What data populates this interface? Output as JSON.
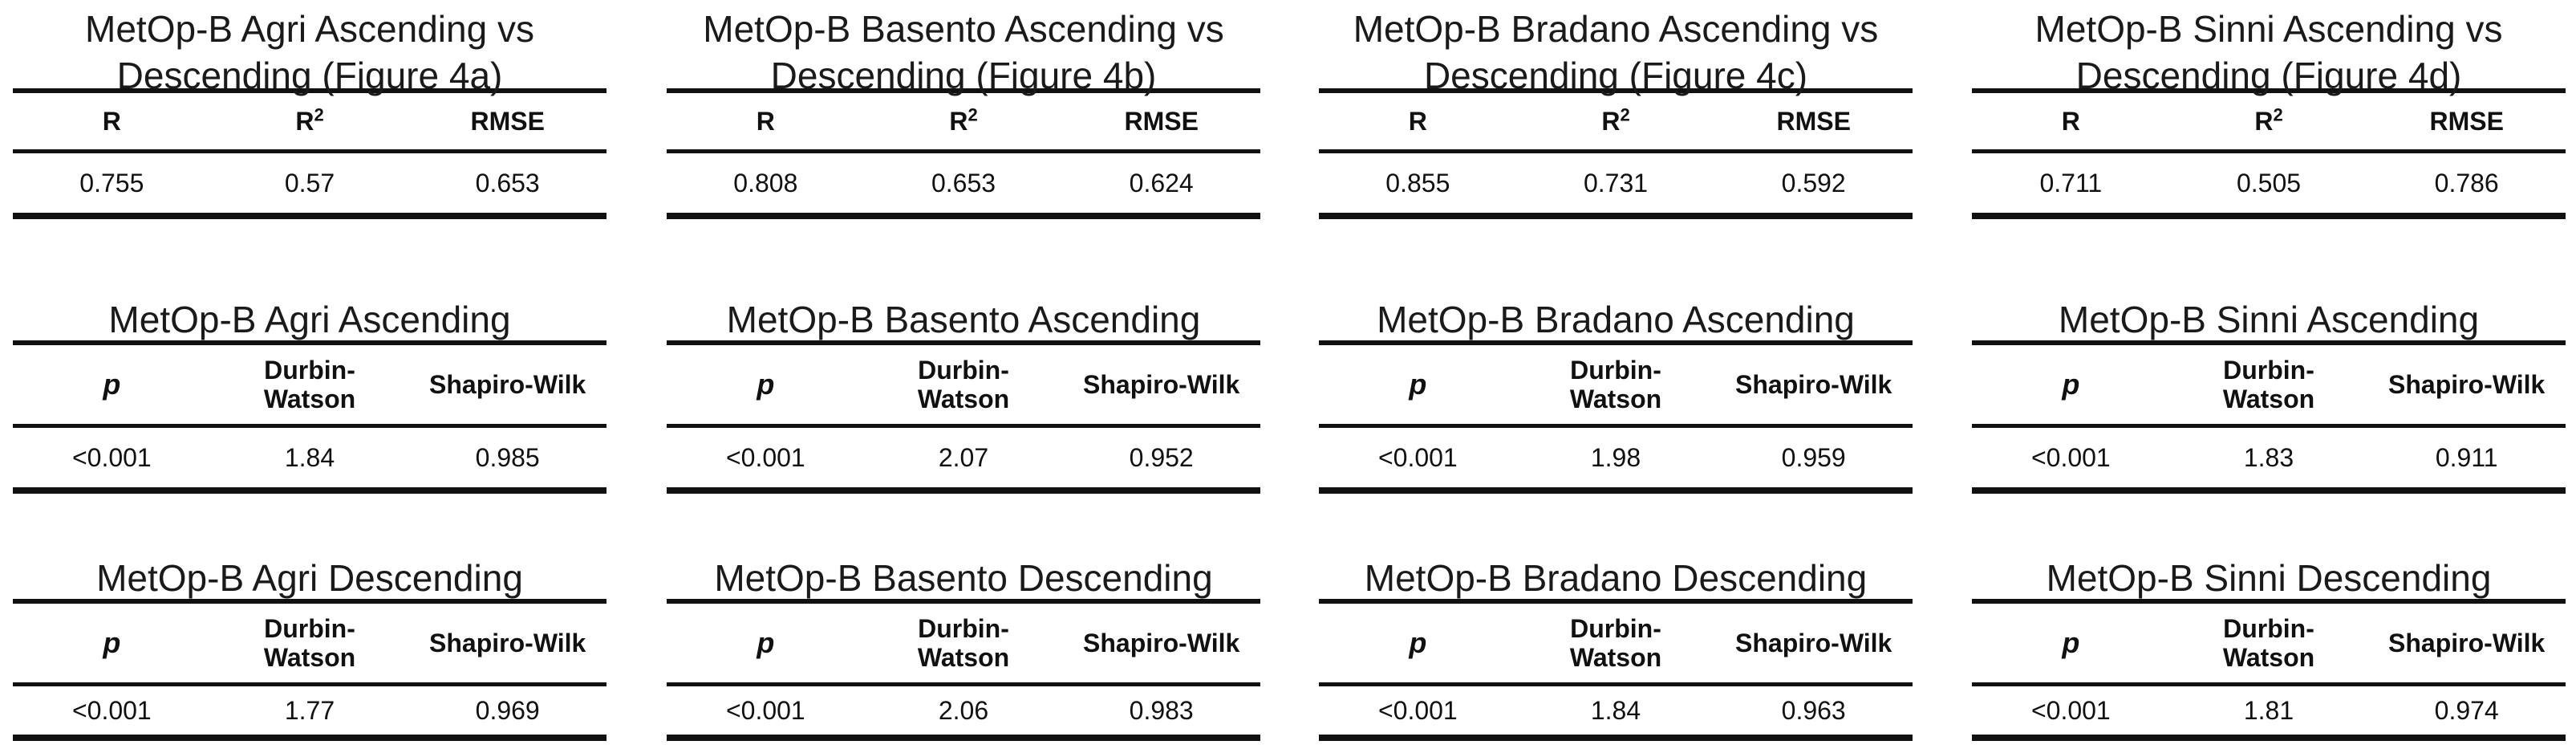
{
  "columns": [
    {
      "comparison": {
        "title_line1": "MetOp-B Agri Ascending vs",
        "title_line2": "Descending (Figure 4a)",
        "headers": {
          "r": "R",
          "r2_base": "R",
          "r2_sup": "2",
          "rmse": "RMSE"
        },
        "values": {
          "r": "0.755",
          "r2": "0.57",
          "rmse": "0.653"
        }
      },
      "ascending": {
        "title": "MetOp-B Agri Ascending",
        "headers": {
          "p": "p",
          "dw_line1": "Durbin-",
          "dw_line2": "Watson",
          "sw": "Shapiro-Wilk"
        },
        "values": {
          "p": "<0.001",
          "dw": "1.84",
          "sw": "0.985"
        }
      },
      "descending": {
        "title": "MetOp-B Agri Descending",
        "headers": {
          "p": "p",
          "dw_line1": "Durbin-",
          "dw_line2": "Watson",
          "sw": "Shapiro-Wilk"
        },
        "values": {
          "p": "<0.001",
          "dw": "1.77",
          "sw": "0.969"
        }
      }
    },
    {
      "comparison": {
        "title_line1": "MetOp-B Basento Ascending vs",
        "title_line2": "Descending (Figure 4b)",
        "headers": {
          "r": "R",
          "r2_base": "R",
          "r2_sup": "2",
          "rmse": "RMSE"
        },
        "values": {
          "r": "0.808",
          "r2": "0.653",
          "rmse": "0.624"
        }
      },
      "ascending": {
        "title": "MetOp-B Basento Ascending",
        "headers": {
          "p": "p",
          "dw_line1": "Durbin-",
          "dw_line2": "Watson",
          "sw": "Shapiro-Wilk"
        },
        "values": {
          "p": "<0.001",
          "dw": "2.07",
          "sw": "0.952"
        }
      },
      "descending": {
        "title": "MetOp-B Basento Descending",
        "headers": {
          "p": "p",
          "dw_line1": "Durbin-",
          "dw_line2": "Watson",
          "sw": "Shapiro-Wilk"
        },
        "values": {
          "p": "<0.001",
          "dw": "2.06",
          "sw": "0.983"
        }
      }
    },
    {
      "comparison": {
        "title_line1": "MetOp-B Bradano Ascending vs",
        "title_line2": "Descending (Figure 4c)",
        "headers": {
          "r": "R",
          "r2_base": "R",
          "r2_sup": "2",
          "rmse": "RMSE"
        },
        "values": {
          "r": "0.855",
          "r2": "0.731",
          "rmse": "0.592"
        }
      },
      "ascending": {
        "title": "MetOp-B Bradano Ascending",
        "headers": {
          "p": "p",
          "dw_line1": "Durbin-",
          "dw_line2": "Watson",
          "sw": "Shapiro-Wilk"
        },
        "values": {
          "p": "<0.001",
          "dw": "1.98",
          "sw": "0.959"
        }
      },
      "descending": {
        "title": "MetOp-B Bradano Descending",
        "headers": {
          "p": "p",
          "dw_line1": "Durbin-",
          "dw_line2": "Watson",
          "sw": "Shapiro-Wilk"
        },
        "values": {
          "p": "<0.001",
          "dw": "1.84",
          "sw": "0.963"
        }
      }
    },
    {
      "comparison": {
        "title_line1": "MetOp-B Sinni Ascending vs",
        "title_line2": "Descending (Figure 4d)",
        "headers": {
          "r": "R",
          "r2_base": "R",
          "r2_sup": "2",
          "rmse": "RMSE"
        },
        "values": {
          "r": "0.711",
          "r2": "0.505",
          "rmse": "0.786"
        }
      },
      "ascending": {
        "title": "MetOp-B Sinni Ascending",
        "headers": {
          "p": "p",
          "dw_line1": "Durbin-",
          "dw_line2": "Watson",
          "sw": "Shapiro-Wilk"
        },
        "values": {
          "p": "<0.001",
          "dw": "1.83",
          "sw": "0.911"
        }
      },
      "descending": {
        "title": "MetOp-B Sinni Descending",
        "headers": {
          "p": "p",
          "dw_line1": "Durbin-",
          "dw_line2": "Watson",
          "sw": "Shapiro-Wilk"
        },
        "values": {
          "p": "<0.001",
          "dw": "1.81",
          "sw": "0.974"
        }
      }
    }
  ]
}
